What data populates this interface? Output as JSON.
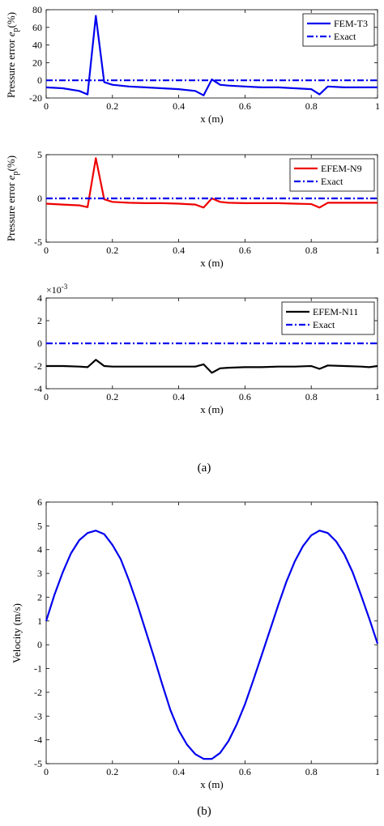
{
  "figure_labels": {
    "a": "(a)",
    "b": "(b)"
  },
  "colors": {
    "blue": "#0000ee",
    "red": "#ee0000",
    "black": "#000000"
  },
  "chart_data": [
    {
      "type": "line",
      "xlabel": "x (m)",
      "ylabel": "Pressure error e_p(%)",
      "ylabel_main": "Pressure error ",
      "ylabel_sym": "e",
      "ylabel_sub": "p",
      "ylabel_tail": "(%)",
      "xlim": [
        0,
        1
      ],
      "ylim": [
        -20,
        80
      ],
      "xticks": [
        "0",
        "0.2",
        "0.4",
        "0.6",
        "0.8",
        "1"
      ],
      "yticks": [
        "80",
        "60",
        "40",
        "20",
        "0",
        "-20"
      ],
      "legend_position": "top-right",
      "series": [
        {
          "name": "FEM-T3",
          "color": "#0000ee",
          "style": "solid",
          "x": [
            0,
            0.05,
            0.1,
            0.125,
            0.15,
            0.175,
            0.2,
            0.25,
            0.3,
            0.35,
            0.4,
            0.45,
            0.475,
            0.5,
            0.525,
            0.55,
            0.6,
            0.65,
            0.7,
            0.75,
            0.8,
            0.825,
            0.85,
            0.9,
            0.95,
            1.0
          ],
          "y": [
            -8,
            -9,
            -12,
            -16,
            73,
            -2,
            -5,
            -7,
            -8,
            -9,
            -10,
            -12,
            -17,
            1,
            -5,
            -6,
            -7,
            -8,
            -8,
            -9,
            -10,
            -16,
            -7,
            -8,
            -8,
            -8
          ]
        },
        {
          "name": "Exact",
          "color": "#0000ee",
          "style": "dashdot",
          "x": [
            0,
            1
          ],
          "y": [
            0,
            0
          ]
        }
      ]
    },
    {
      "type": "line",
      "xlabel": "x (m)",
      "ylabel": "Pressure error e_p(%)",
      "ylabel_main": "Pressure error ",
      "ylabel_sym": "e",
      "ylabel_sub": "p",
      "ylabel_tail": "(%)",
      "xlim": [
        0,
        1
      ],
      "ylim": [
        -5,
        5
      ],
      "xticks": [
        "0",
        "0.2",
        "0.4",
        "0.6",
        "0.8",
        "1"
      ],
      "yticks": [
        "5",
        "0",
        "-5"
      ],
      "legend_position": "top-right",
      "series": [
        {
          "name": "EFEM-N9",
          "color": "#ee0000",
          "style": "solid",
          "x": [
            0,
            0.05,
            0.1,
            0.125,
            0.15,
            0.175,
            0.2,
            0.25,
            0.3,
            0.35,
            0.4,
            0.45,
            0.475,
            0.5,
            0.525,
            0.55,
            0.6,
            0.65,
            0.7,
            0.75,
            0.8,
            0.825,
            0.85,
            0.9,
            0.95,
            1.0
          ],
          "y": [
            -0.6,
            -0.7,
            -0.8,
            -1.0,
            4.6,
            -0.1,
            -0.4,
            -0.5,
            -0.55,
            -0.55,
            -0.6,
            -0.7,
            -1.05,
            0.0,
            -0.4,
            -0.5,
            -0.55,
            -0.55,
            -0.55,
            -0.6,
            -0.65,
            -1.05,
            -0.5,
            -0.5,
            -0.5,
            -0.5
          ]
        },
        {
          "name": "Exact",
          "color": "#0000ee",
          "style": "dashdot",
          "x": [
            0,
            1
          ],
          "y": [
            0,
            0
          ]
        }
      ]
    },
    {
      "type": "line",
      "xlabel": "x (m)",
      "ylabel": "",
      "xlim": [
        0,
        1
      ],
      "ylim": [
        -4,
        4
      ],
      "scale_label": "×10",
      "scale_exp": "-3",
      "xticks": [
        "0",
        "0.2",
        "0.4",
        "0.6",
        "0.8",
        "1"
      ],
      "yticks": [
        "4",
        "2",
        "0",
        "-2",
        "-4"
      ],
      "legend_position": "top-right",
      "series": [
        {
          "name": "EFEM-N11",
          "color": "#000000",
          "style": "solid",
          "x": [
            0,
            0.05,
            0.1,
            0.125,
            0.15,
            0.175,
            0.2,
            0.25,
            0.3,
            0.35,
            0.4,
            0.45,
            0.475,
            0.5,
            0.525,
            0.55,
            0.6,
            0.65,
            0.7,
            0.75,
            0.8,
            0.825,
            0.85,
            0.9,
            0.95,
            0.975,
            1.0
          ],
          "y": [
            -2.0,
            -2.0,
            -2.05,
            -2.1,
            -1.45,
            -2.0,
            -2.05,
            -2.05,
            -2.05,
            -2.05,
            -2.05,
            -2.05,
            -1.85,
            -2.6,
            -2.2,
            -2.15,
            -2.1,
            -2.1,
            -2.05,
            -2.05,
            -2.0,
            -2.25,
            -1.95,
            -2.0,
            -2.05,
            -2.1,
            -2.0
          ]
        },
        {
          "name": "Exact",
          "color": "#0000ee",
          "style": "dashdot",
          "x": [
            0,
            1
          ],
          "y": [
            0,
            0
          ]
        }
      ]
    },
    {
      "type": "line",
      "xlabel": "x (m)",
      "ylabel": "Velocity (m/s)",
      "xlim": [
        0,
        1
      ],
      "ylim": [
        -5,
        6
      ],
      "xticks": [
        "0",
        "0.2",
        "0.4",
        "0.6",
        "0.8",
        "1"
      ],
      "yticks": [
        "6",
        "5",
        "4",
        "3",
        "2",
        "1",
        "0",
        "-1",
        "-2",
        "-3",
        "-4",
        "-5"
      ],
      "legend_position": "none",
      "series": [
        {
          "name": "",
          "color": "#0000ee",
          "style": "solid",
          "x": [
            0,
            0.025,
            0.05,
            0.075,
            0.1,
            0.125,
            0.15,
            0.175,
            0.2,
            0.225,
            0.25,
            0.275,
            0.3,
            0.325,
            0.35,
            0.375,
            0.4,
            0.425,
            0.45,
            0.475,
            0.5,
            0.525,
            0.55,
            0.575,
            0.6,
            0.625,
            0.65,
            0.675,
            0.7,
            0.725,
            0.75,
            0.775,
            0.8,
            0.825,
            0.85,
            0.875,
            0.9,
            0.925,
            0.95,
            0.975,
            1.0
          ],
          "y": [
            1.0,
            2.1,
            3.05,
            3.85,
            4.4,
            4.7,
            4.8,
            4.65,
            4.2,
            3.6,
            2.7,
            1.7,
            0.6,
            -0.5,
            -1.65,
            -2.75,
            -3.6,
            -4.2,
            -4.6,
            -4.8,
            -4.8,
            -4.55,
            -4.05,
            -3.35,
            -2.5,
            -1.5,
            -0.45,
            0.6,
            1.65,
            2.65,
            3.5,
            4.15,
            4.6,
            4.8,
            4.7,
            4.35,
            3.8,
            3.05,
            2.1,
            1.1,
            0.05
          ]
        }
      ]
    }
  ]
}
